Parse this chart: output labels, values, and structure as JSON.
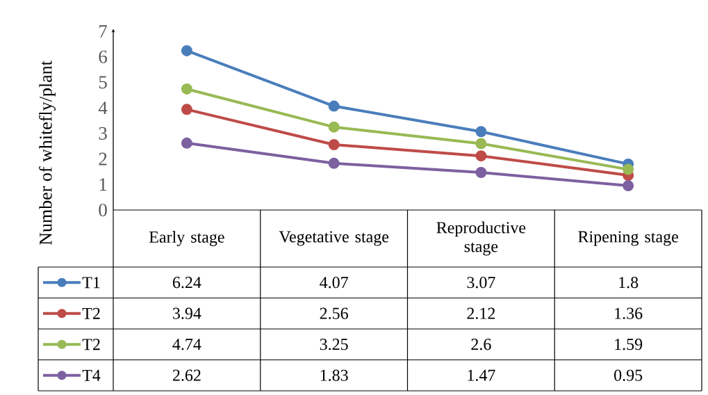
{
  "chart_data": {
    "type": "line",
    "ylabel": "Number of whitefly/plant",
    "categories": [
      "Early stage",
      "Vegetative stage",
      "Reproductive stage",
      "Ripening stage"
    ],
    "series": [
      {
        "name": "T1",
        "color": "#4a7ebb",
        "values": [
          6.24,
          4.07,
          3.07,
          1.8
        ]
      },
      {
        "name": "T2",
        "color": "#be4b48",
        "values": [
          3.94,
          2.56,
          2.12,
          1.36
        ]
      },
      {
        "name": "T2",
        "color": "#98b954",
        "values": [
          4.74,
          3.25,
          2.6,
          1.59
        ]
      },
      {
        "name": "T4",
        "color": "#7d60a0",
        "values": [
          2.62,
          1.83,
          1.47,
          0.95
        ]
      }
    ],
    "ylim": [
      0,
      7
    ],
    "yticks": [
      0,
      1,
      2,
      3,
      4,
      5,
      6,
      7
    ],
    "data_labels": true,
    "legend": "bottom left",
    "marker": "circle",
    "line_style": "solid",
    "grid": false
  }
}
